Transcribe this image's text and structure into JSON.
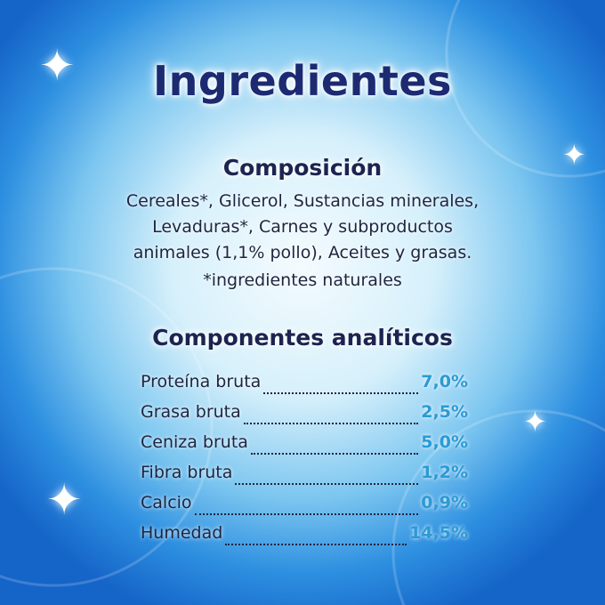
{
  "title": "Ingredientes",
  "composition": {
    "heading": "Composición",
    "lines": [
      "Cereales*, Glicerol, Sustancias minerales,",
      "Levaduras*, Carnes y subproductos",
      "animales (1,1% pollo), Aceites y grasas."
    ],
    "note": "*ingredientes naturales"
  },
  "analytics": {
    "heading": "Componentes analíticos",
    "rows": [
      {
        "label": "Proteína bruta",
        "value": "7,0%"
      },
      {
        "label": "Grasa bruta",
        "value": "2,5%"
      },
      {
        "label": "Ceniza bruta",
        "value": "5,0%"
      },
      {
        "label": "Fibra bruta",
        "value": "1,2%"
      },
      {
        "label": "Calcio",
        "value": "0,9%"
      },
      {
        "label": "Humedad",
        "value": "14,5%"
      }
    ]
  },
  "colors": {
    "title": "#1c2a72",
    "value": "#2b9ad6",
    "background_edge": "#1564c8"
  },
  "icons": [
    "sparkle-icon"
  ]
}
